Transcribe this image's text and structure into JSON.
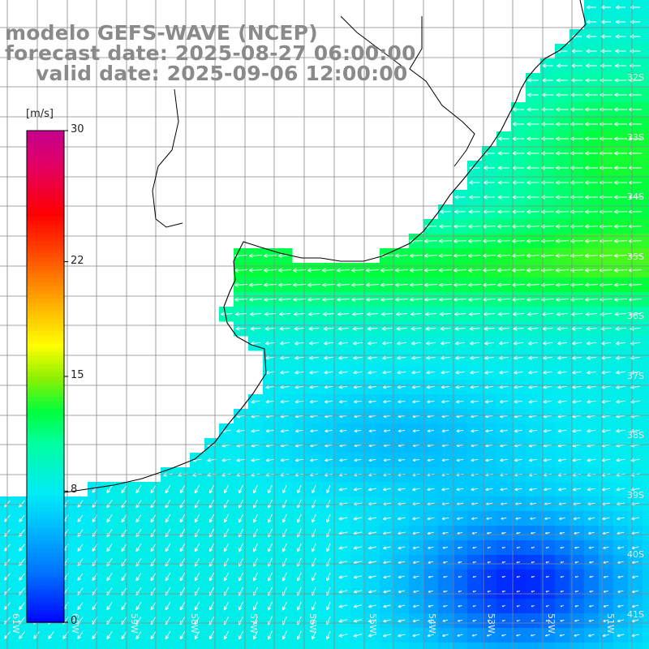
{
  "title": {
    "line1": "modelo GEFS-WAVE (NCEP)",
    "line2": "forecast date: 2025-08-27 06:00:00",
    "line3": "valid date: 2025-09-06 12:00:00"
  },
  "colorbar": {
    "unit": "[m/s]",
    "ticks": [
      {
        "label": "30",
        "value": 30
      },
      {
        "label": "22",
        "value": 22
      },
      {
        "label": "15",
        "value": 15
      },
      {
        "label": "8",
        "value": 8
      },
      {
        "label": "0",
        "value": 0
      }
    ],
    "colors": [
      "#0000ff",
      "#0080ff",
      "#00c8ff",
      "#00ffe6",
      "#00ff64",
      "#00d200",
      "#a0f000",
      "#ffff00",
      "#ffb400",
      "#ff6400",
      "#ff0000",
      "#e60050",
      "#c8008c"
    ]
  },
  "latitude_labels": [
    "32S",
    "33S",
    "34S",
    "35S",
    "36S",
    "37S",
    "38S",
    "39S",
    "40S",
    "41S"
  ],
  "longitude_labels": [
    "61W",
    "60W",
    "59W",
    "58W",
    "57W",
    "56W",
    "55W",
    "54W",
    "53W",
    "52W",
    "51W"
  ],
  "colors": {
    "land": "#ffffff",
    "grid": "#888888",
    "coast": "#000000",
    "arrows": "#ffffff",
    "title": "#8a8a8a"
  }
}
